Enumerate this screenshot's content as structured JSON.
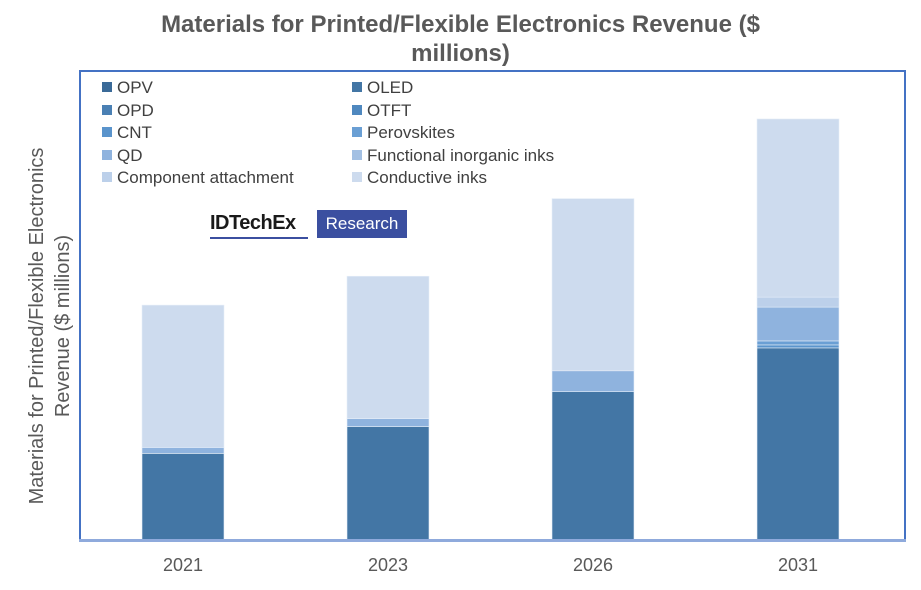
{
  "chart_data": {
    "type": "bar",
    "stacked": true,
    "title": "Materials for Printed/Flexible Electronics Revenue ($ millions)",
    "title_lines": [
      "Materials for Printed/Flexible Electronics Revenue ($",
      "millions)"
    ],
    "ylabel": "Materials for Printed/Flexible Electronics Revenue ($ millions)",
    "ylabel_lines": [
      "Materials for Printed/Flexible Electronics",
      "Revenue ($ millions)"
    ],
    "xlabel": "",
    "y_axis_ticks_shown": false,
    "ylim": [
      0,
      430
    ],
    "grid": false,
    "legend_position": "top-left",
    "categories": [
      "2021",
      "2023",
      "2026",
      "2031"
    ],
    "series": [
      {
        "name": "OPV",
        "color": "#3a6a98",
        "values": [
          0,
          0,
          0,
          0
        ]
      },
      {
        "name": "OLED",
        "color": "#4376a5",
        "values": [
          87,
          114,
          149,
          193
        ]
      },
      {
        "name": "OPD",
        "color": "#4a80b4",
        "values": [
          0,
          0,
          0,
          0
        ]
      },
      {
        "name": "OTFT",
        "color": "#4f88bf",
        "values": [
          0,
          0,
          0,
          0
        ]
      },
      {
        "name": "CNT",
        "color": "#5a94cc",
        "values": [
          0,
          0,
          0,
          3
        ]
      },
      {
        "name": "Perovskites",
        "color": "#6a9fd4",
        "values": [
          0,
          0,
          0,
          4
        ]
      },
      {
        "name": "QD",
        "color": "#8fb3de",
        "values": [
          6,
          8,
          21,
          34
        ]
      },
      {
        "name": "Functional inorganic inks",
        "color": "#a3c0e3",
        "values": [
          0,
          0,
          0,
          0
        ]
      },
      {
        "name": "Component attachment",
        "color": "#bcd0ea",
        "values": [
          0,
          0,
          0,
          10
        ]
      },
      {
        "name": "Conductive inks",
        "color": "#cddbee",
        "values": [
          143,
          143,
          173,
          179
        ]
      }
    ]
  },
  "logo": {
    "brand": "IDTechEx",
    "tag": "Research"
  }
}
